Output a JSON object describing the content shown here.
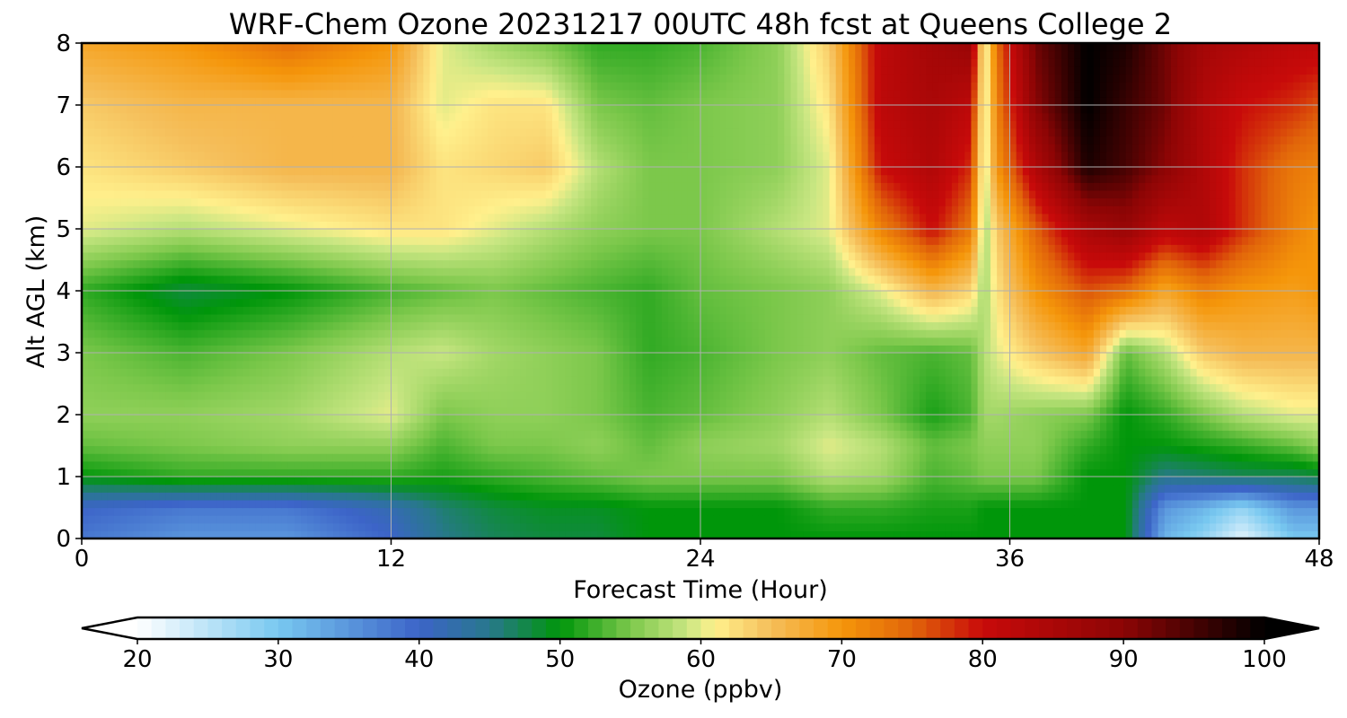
{
  "chart_data": {
    "type": "heatmap",
    "title": "WRF-Chem Ozone  20231217 00UTC 48h fcst at Queens College 2",
    "xlabel": "Forecast Time (Hour)",
    "ylabel": "Alt AGL (km)",
    "x_ticks": [
      "0",
      "12",
      "24",
      "36",
      "48"
    ],
    "y_ticks": [
      "0",
      "1",
      "2",
      "3",
      "4",
      "5",
      "6",
      "7",
      "8"
    ],
    "xlim": [
      0,
      48
    ],
    "ylim": [
      0,
      8
    ],
    "grid": true,
    "x": [
      0,
      4,
      8,
      12,
      14,
      16,
      18,
      20,
      22,
      24,
      27,
      29,
      31,
      33,
      34.5,
      35,
      35.5,
      37,
      39,
      40.5,
      42,
      43.5,
      45,
      47,
      48
    ],
    "y": [
      0,
      0.5,
      1,
      1.5,
      2,
      3,
      4,
      5,
      6,
      7,
      8
    ],
    "z": [
      [
        38,
        35,
        35,
        40,
        45,
        47,
        48,
        48,
        50,
        50,
        50,
        50,
        50,
        50,
        50,
        50,
        50,
        50,
        50,
        50,
        32,
        28,
        22,
        30,
        30
      ],
      [
        40,
        38,
        38,
        42,
        46,
        48,
        49,
        49,
        50,
        50,
        50,
        52,
        52,
        51,
        51,
        50,
        50,
        50,
        50,
        50,
        35,
        32,
        28,
        35,
        35
      ],
      [
        50,
        52,
        52,
        52,
        51,
        52,
        53,
        54,
        55,
        55,
        55,
        58,
        57,
        53,
        54,
        55,
        55,
        55,
        50,
        50,
        45,
        46,
        47,
        47,
        48
      ],
      [
        54,
        55,
        56,
        56,
        53,
        55,
        55,
        56,
        54,
        56,
        57,
        60,
        58,
        54,
        55,
        56,
        56,
        56,
        52,
        50,
        50,
        51,
        52,
        54,
        56
      ],
      [
        56,
        56,
        57,
        60,
        55,
        56,
        56,
        55,
        53,
        54,
        56,
        58,
        55,
        51,
        53,
        57,
        57,
        56,
        55,
        50,
        52,
        55,
        58,
        60,
        60
      ],
      [
        55,
        53,
        55,
        58,
        59,
        57,
        56,
        55,
        52,
        53,
        55,
        56,
        54,
        53,
        54,
        58,
        60,
        64,
        68,
        54,
        58,
        64,
        66,
        66,
        66
      ],
      [
        52,
        48,
        50,
        53,
        54,
        55,
        54,
        53,
        52,
        54,
        55,
        56,
        60,
        66,
        63,
        57,
        62,
        70,
        76,
        74,
        68,
        72,
        70,
        69,
        70
      ],
      [
        60,
        58,
        60,
        62,
        62,
        60,
        58,
        56,
        55,
        55,
        58,
        60,
        72,
        80,
        73,
        57,
        64,
        75,
        85,
        88,
        82,
        84,
        78,
        72,
        70
      ],
      [
        62,
        64,
        66,
        66,
        62,
        63,
        64,
        58,
        55,
        55,
        56,
        60,
        80,
        84,
        78,
        58,
        70,
        84,
        98,
        95,
        90,
        84,
        78,
        73,
        72
      ],
      [
        64,
        66,
        66,
        66,
        60,
        62,
        62,
        55,
        54,
        55,
        56,
        62,
        82,
        85,
        82,
        58,
        72,
        90,
        100,
        96,
        92,
        84,
        80,
        78,
        76
      ],
      [
        68,
        70,
        74,
        70,
        60,
        57,
        55,
        52,
        52,
        53,
        56,
        64,
        82,
        86,
        88,
        58,
        74,
        92,
        100,
        98,
        92,
        86,
        84,
        82,
        82
      ]
    ],
    "colorbar": {
      "label": "Ozone  (ppbv)",
      "min": 20,
      "max": 100,
      "ticks": [
        "20",
        "30",
        "40",
        "50",
        "60",
        "70",
        "80",
        "90",
        "100"
      ],
      "extend": "both",
      "placement": "bottom",
      "stops": [
        {
          "v": 20,
          "c": "#ffffff"
        },
        {
          "v": 30,
          "c": "#78c8f0"
        },
        {
          "v": 40,
          "c": "#3c64c8"
        },
        {
          "v": 45,
          "c": "#28788c"
        },
        {
          "v": 50,
          "c": "#00960a"
        },
        {
          "v": 55,
          "c": "#7cc84b"
        },
        {
          "v": 59,
          "c": "#c8e682"
        },
        {
          "v": 61,
          "c": "#fff08c"
        },
        {
          "v": 65,
          "c": "#f5be5a"
        },
        {
          "v": 70,
          "c": "#f5960a"
        },
        {
          "v": 75,
          "c": "#e1640a"
        },
        {
          "v": 80,
          "c": "#c80a0a"
        },
        {
          "v": 90,
          "c": "#8c0505"
        },
        {
          "v": 100,
          "c": "#000000"
        }
      ]
    }
  }
}
